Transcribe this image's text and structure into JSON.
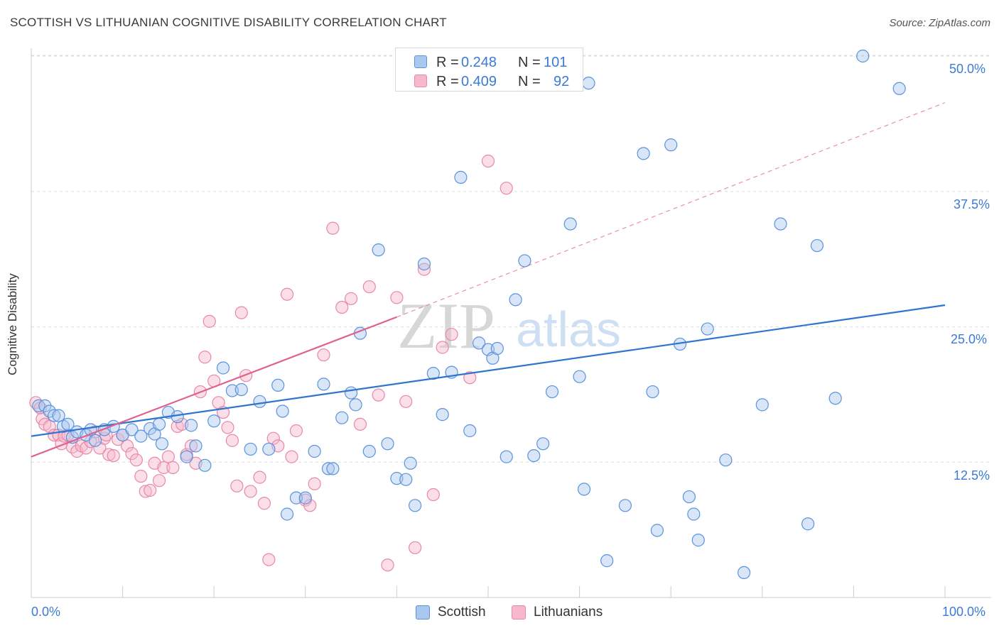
{
  "title": "SCOTTISH VS LITHUANIAN COGNITIVE DISABILITY CORRELATION CHART",
  "source": "Source: ZipAtlas.com",
  "watermark": {
    "zip": "ZIP",
    "atlas": "atlas"
  },
  "colors": {
    "scottish_fill": "#a9c8f0",
    "scottish_stroke": "#5b93db",
    "scottish_line": "#2f74d0",
    "lith_fill": "#f6b8cc",
    "lith_stroke": "#e888a8",
    "lith_line": "#e0608f",
    "grid": "#dddddd",
    "tick_text": "#3a7bd5"
  },
  "legend": {
    "rows": [
      {
        "r_label": "R =",
        "r_value": "0.248",
        "n_label": "N =",
        "n_value": "101"
      },
      {
        "r_label": "R =",
        "r_value": "0.409",
        "n_label": "N =",
        "n_value": "92"
      }
    ],
    "bottom": [
      "Scottish",
      "Lithuanians"
    ]
  },
  "axes": {
    "ylabel": "Cognitive Disability",
    "x_min_label": "0.0%",
    "x_max_label": "100.0%",
    "y_tick_labels": [
      "50.0%",
      "37.5%",
      "25.0%",
      "12.5%"
    ]
  },
  "chart_data": {
    "type": "scatter",
    "title": "SCOTTISH VS LITHUANIAN COGNITIVE DISABILITY CORRELATION CHART",
    "xlabel": "",
    "ylabel": "Cognitive Disability",
    "xlim": [
      0,
      100
    ],
    "ylim": [
      0,
      50
    ],
    "y_ticks": [
      12.5,
      25.0,
      37.5,
      50.0
    ],
    "grid": "horizontal dashed",
    "legend_position": "top-center",
    "series": [
      {
        "name": "Scottish",
        "r": 0.248,
        "n": 101,
        "trend": {
          "x": [
            0,
            100
          ],
          "y": [
            14.9,
            27.0
          ],
          "style": "solid"
        },
        "points": [
          [
            0.8,
            17.7
          ],
          [
            1.5,
            17.7
          ],
          [
            2,
            17.2
          ],
          [
            2.5,
            16.8
          ],
          [
            3,
            16.8
          ],
          [
            3.5,
            15.8
          ],
          [
            4,
            16.0
          ],
          [
            4.5,
            14.8
          ],
          [
            5,
            15.3
          ],
          [
            6,
            15.0
          ],
          [
            6.5,
            15.5
          ],
          [
            7,
            14.5
          ],
          [
            8,
            15.5
          ],
          [
            9,
            15.8
          ],
          [
            10,
            15.0
          ],
          [
            11,
            15.5
          ],
          [
            12,
            14.9
          ],
          [
            13,
            15.6
          ],
          [
            13.5,
            15.1
          ],
          [
            14,
            16.0
          ],
          [
            15,
            17.1
          ],
          [
            16,
            16.7
          ],
          [
            14.3,
            14.2
          ],
          [
            17,
            13.0
          ],
          [
            17.5,
            15.9
          ],
          [
            18,
            14.0
          ],
          [
            19,
            12.2
          ],
          [
            20,
            16.3
          ],
          [
            21,
            21.2
          ],
          [
            22,
            19.1
          ],
          [
            23,
            19.2
          ],
          [
            24,
            13.7
          ],
          [
            25,
            18.1
          ],
          [
            26,
            13.7
          ],
          [
            27,
            19.6
          ],
          [
            27.5,
            17.2
          ],
          [
            28,
            7.7
          ],
          [
            29,
            9.2
          ],
          [
            30,
            9.2
          ],
          [
            31,
            13.5
          ],
          [
            32,
            19.7
          ],
          [
            32.5,
            11.9
          ],
          [
            33,
            11.9
          ],
          [
            34,
            16.6
          ],
          [
            35,
            18.9
          ],
          [
            35.5,
            17.8
          ],
          [
            36,
            24.4
          ],
          [
            37,
            13.5
          ],
          [
            38,
            32.1
          ],
          [
            39,
            14.2
          ],
          [
            40,
            11.0
          ],
          [
            41,
            10.9
          ],
          [
            41.5,
            12.4
          ],
          [
            42,
            8.5
          ],
          [
            43,
            30.8
          ],
          [
            44,
            20.7
          ],
          [
            45,
            16.9
          ],
          [
            46,
            20.8
          ],
          [
            47,
            38.8
          ],
          [
            48,
            15.4
          ],
          [
            49,
            23.5
          ],
          [
            50,
            22.9
          ],
          [
            50.5,
            22.1
          ],
          [
            51,
            23.0
          ],
          [
            52,
            13.0
          ],
          [
            53,
            27.5
          ],
          [
            54,
            31.1
          ],
          [
            55,
            13.1
          ],
          [
            56,
            14.2
          ],
          [
            56.5,
            48.1
          ],
          [
            57,
            19.0
          ],
          [
            59,
            34.5
          ],
          [
            60,
            20.4
          ],
          [
            60.5,
            10.0
          ],
          [
            61,
            47.5
          ],
          [
            63,
            3.4
          ],
          [
            65,
            8.5
          ],
          [
            67,
            41.0
          ],
          [
            68,
            19.0
          ],
          [
            68.5,
            6.2
          ],
          [
            70,
            41.8
          ],
          [
            71,
            23.4
          ],
          [
            72,
            9.3
          ],
          [
            72.5,
            7.7
          ],
          [
            73,
            5.3
          ],
          [
            74,
            24.8
          ],
          [
            76,
            12.7
          ],
          [
            78,
            2.3
          ],
          [
            80,
            17.8
          ],
          [
            82,
            34.5
          ],
          [
            85,
            6.8
          ],
          [
            86,
            32.5
          ],
          [
            88,
            18.4
          ],
          [
            91,
            50.0
          ],
          [
            95,
            47.0
          ]
        ]
      },
      {
        "name": "Lithuanians",
        "r": 0.409,
        "n": 92,
        "trend": {
          "x": [
            0,
            40
          ],
          "y": [
            13.0,
            25.9
          ],
          "style": "solid",
          "extended_to": [
            100,
            45.7
          ],
          "extended_style": "dashed"
        },
        "points": [
          [
            0.5,
            18.0
          ],
          [
            1,
            17.5
          ],
          [
            1.2,
            16.5
          ],
          [
            1.5,
            16.0
          ],
          [
            2,
            15.8
          ],
          [
            2.5,
            15.0
          ],
          [
            3,
            15.0
          ],
          [
            3.3,
            14.2
          ],
          [
            3.6,
            14.9
          ],
          [
            4,
            15.0
          ],
          [
            4.5,
            13.9
          ],
          [
            5,
            13.5
          ],
          [
            5.5,
            14.0
          ],
          [
            6,
            13.8
          ],
          [
            6.5,
            14.4
          ],
          [
            7,
            15.3
          ],
          [
            7.5,
            13.8
          ],
          [
            8,
            14.7
          ],
          [
            8.2,
            15.0
          ],
          [
            8.5,
            13.2
          ],
          [
            9,
            13.1
          ],
          [
            9.5,
            14.6
          ],
          [
            10,
            15.0
          ],
          [
            10.5,
            14.0
          ],
          [
            11,
            13.3
          ],
          [
            11.5,
            12.7
          ],
          [
            12,
            11.2
          ],
          [
            12.5,
            9.8
          ],
          [
            13,
            9.9
          ],
          [
            13.5,
            12.4
          ],
          [
            14,
            10.8
          ],
          [
            14.5,
            12.0
          ],
          [
            15,
            13.0
          ],
          [
            15.5,
            12.0
          ],
          [
            16,
            15.8
          ],
          [
            16.5,
            16.0
          ],
          [
            17,
            13.2
          ],
          [
            17.5,
            14.0
          ],
          [
            18,
            12.4
          ],
          [
            18.5,
            19.0
          ],
          [
            19,
            22.2
          ],
          [
            19.5,
            25.5
          ],
          [
            20,
            20.0
          ],
          [
            20.5,
            18.0
          ],
          [
            21,
            17.1
          ],
          [
            21.5,
            15.7
          ],
          [
            22,
            14.5
          ],
          [
            22.5,
            10.3
          ],
          [
            23,
            26.3
          ],
          [
            23.5,
            20.5
          ],
          [
            24,
            9.8
          ],
          [
            25,
            11.1
          ],
          [
            25.5,
            8.7
          ],
          [
            26,
            3.5
          ],
          [
            26.5,
            14.7
          ],
          [
            27,
            14.0
          ],
          [
            28,
            28.0
          ],
          [
            28.5,
            13.0
          ],
          [
            29,
            15.4
          ],
          [
            30,
            9.0
          ],
          [
            30.5,
            8.5
          ],
          [
            31,
            10.5
          ],
          [
            32,
            22.4
          ],
          [
            33,
            34.1
          ],
          [
            34,
            26.8
          ],
          [
            35,
            27.6
          ],
          [
            36,
            16.0
          ],
          [
            37,
            28.7
          ],
          [
            38,
            18.7
          ],
          [
            39,
            3.0
          ],
          [
            40,
            27.7
          ],
          [
            41,
            18.1
          ],
          [
            42,
            4.6
          ],
          [
            43,
            30.3
          ],
          [
            44,
            9.5
          ],
          [
            45,
            23.1
          ],
          [
            46,
            24.3
          ],
          [
            48,
            20.3
          ],
          [
            50,
            40.3
          ],
          [
            52,
            37.8
          ]
        ]
      }
    ]
  }
}
